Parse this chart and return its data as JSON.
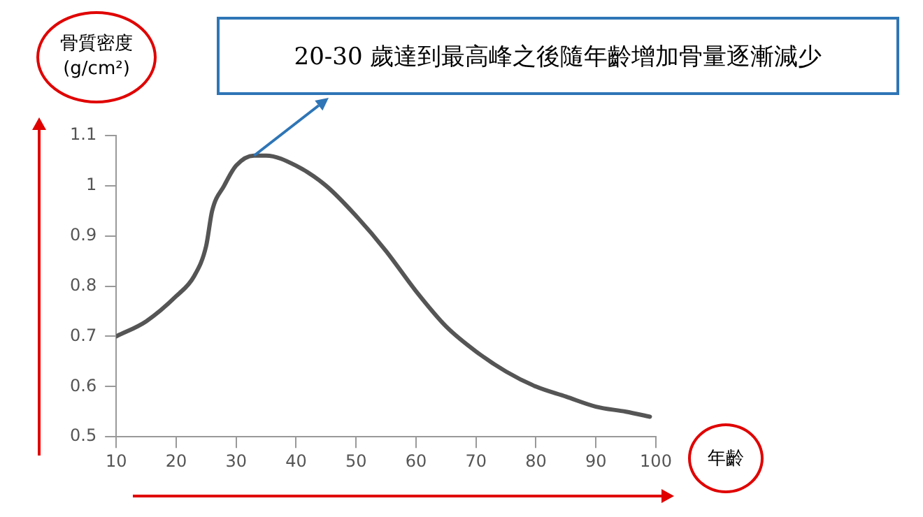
{
  "chart_data": {
    "type": "line",
    "ylabel": "骨質密度\n(g/cm²)",
    "xlabel": "年齡",
    "x": [
      10,
      15,
      20,
      23,
      25,
      26,
      28,
      30,
      33,
      35,
      40,
      45,
      50,
      55,
      60,
      65,
      70,
      75,
      80,
      85,
      90,
      95,
      99
    ],
    "series": [
      {
        "color": "#555555",
        "values": [
          0.7,
          0.73,
          0.78,
          0.82,
          0.88,
          0.95,
          1.0,
          1.04,
          1.06,
          1.06,
          1.04,
          1.0,
          0.94,
          0.87,
          0.79,
          0.72,
          0.67,
          0.63,
          0.6,
          0.58,
          0.56,
          0.55,
          0.54
        ]
      }
    ],
    "xlim": [
      10,
      100
    ],
    "xticks": [
      10,
      20,
      30,
      40,
      50,
      60,
      70,
      80,
      90,
      100
    ],
    "ylim": [
      0.5,
      1.1
    ],
    "yticks": [
      0.5,
      0.6,
      0.7,
      0.8,
      0.9,
      1,
      1.1
    ],
    "annotations": [
      "20-30 歲達到最高峰之後隨年齡增加骨量逐漸減少"
    ],
    "grid": false,
    "legend": false,
    "marker": "none",
    "line_style": "solid"
  }
}
